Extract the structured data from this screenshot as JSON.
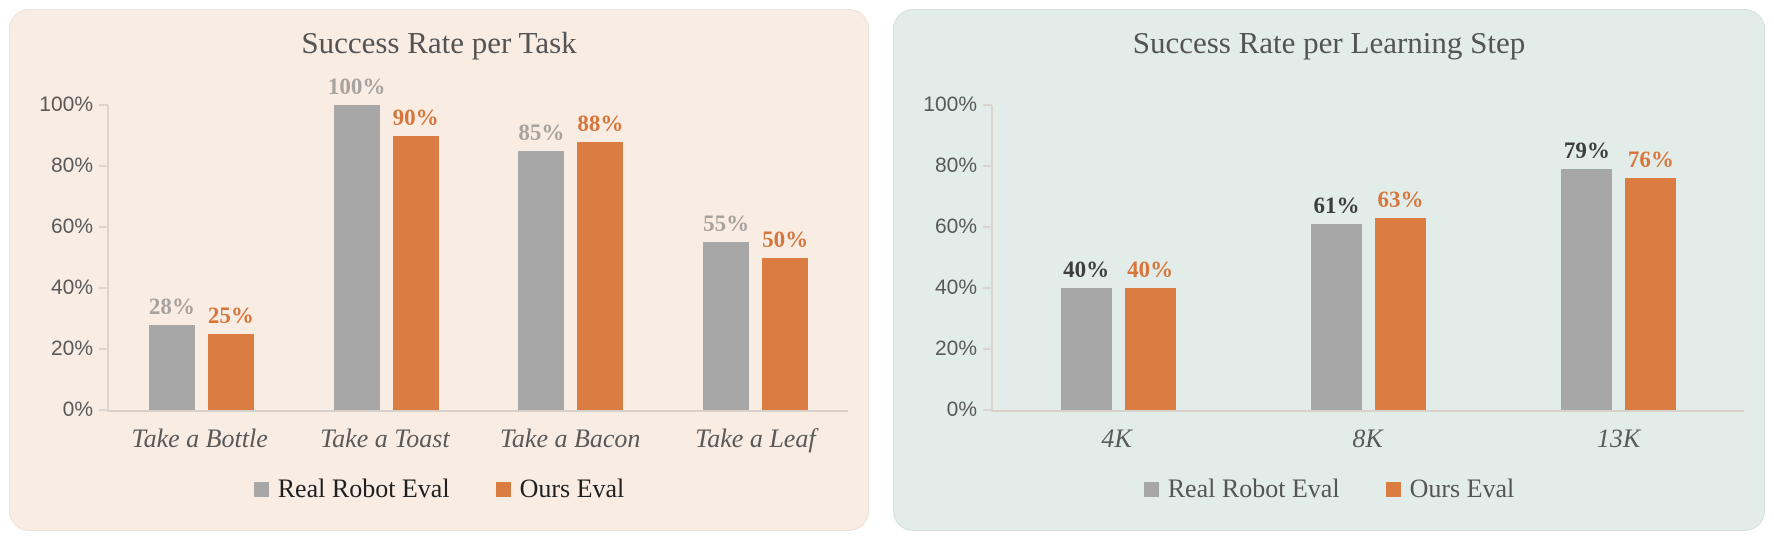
{
  "page": {
    "background": "#FFFFFF"
  },
  "chart_data": [
    {
      "type": "bar",
      "title": "Success Rate per Task",
      "panel_background": "#F9ECE3",
      "title_color": "#545454",
      "axis_text_color": "#595959",
      "category_text_color": "#595959",
      "grid": false,
      "legend_position": "bottom",
      "categories": [
        "Take a Bottle",
        "Take a Toast",
        "Take a Bacon",
        "Take a Leaf"
      ],
      "series": [
        {
          "name": "Real Robot Eval",
          "values": [
            28,
            100,
            85,
            55
          ],
          "bar_color": "#A7A7A7",
          "data_label_color": "#A6A29E"
        },
        {
          "name": "Ours Eval",
          "values": [
            25,
            90,
            88,
            50
          ],
          "bar_color": "#DB7C42",
          "data_label_color": "#D6763C"
        }
      ],
      "data_labels": [
        [
          "28%",
          "100%",
          "85%",
          "55%"
        ],
        [
          "25%",
          "90%",
          "88%",
          "50%"
        ]
      ],
      "ylabel": "",
      "xlabel": "",
      "ylim": [
        0,
        100
      ],
      "y_ticks": [
        0,
        20,
        40,
        60,
        80,
        100
      ],
      "y_tick_labels": [
        "0%",
        "20%",
        "40%",
        "60%",
        "80%",
        "100%"
      ],
      "legend": {
        "entries": [
          "Real Robot Eval",
          "Ours Eval"
        ],
        "text_color": "#1F1F1F"
      }
    },
    {
      "type": "bar",
      "title": "Success Rate per Learning Step",
      "panel_background": "#E2EDEA",
      "title_color": "#545454",
      "axis_text_color": "#595959",
      "category_text_color": "#595959",
      "grid": false,
      "legend_position": "bottom",
      "categories": [
        "4K",
        "8K",
        "13K"
      ],
      "series": [
        {
          "name": "Real Robot Eval",
          "values": [
            40,
            61,
            79
          ],
          "bar_color": "#A7A7A7",
          "data_label_color": "#3D3D3D"
        },
        {
          "name": "Ours Eval",
          "values": [
            40,
            63,
            76
          ],
          "bar_color": "#DB7C42",
          "data_label_color": "#D6763C"
        }
      ],
      "data_labels": [
        [
          "40%",
          "61%",
          "79%"
        ],
        [
          "40%",
          "63%",
          "76%"
        ]
      ],
      "ylabel": "",
      "xlabel": "",
      "ylim": [
        0,
        100
      ],
      "y_ticks": [
        0,
        20,
        40,
        60,
        80,
        100
      ],
      "y_tick_labels": [
        "0%",
        "20%",
        "40%",
        "60%",
        "80%",
        "100%"
      ],
      "legend": {
        "entries": [
          "Real Robot Eval",
          "Ours Eval"
        ],
        "text_color": "#555555"
      }
    }
  ]
}
